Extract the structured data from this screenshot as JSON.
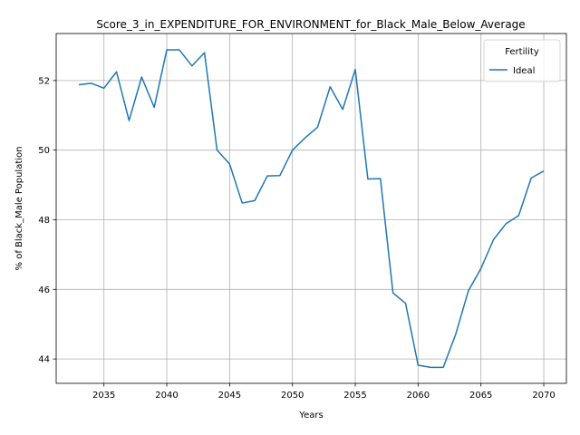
{
  "chart_data": {
    "type": "line",
    "title": "Score_3_in_EXPENDITURE_FOR_ENVIRONMENT_for_Black_Male_Below_Average",
    "xlabel": "Years",
    "ylabel": "% of Black_Male Population",
    "xlim": [
      2031.2,
      2071.8
    ],
    "ylim": [
      43.3,
      53.35
    ],
    "xticks": [
      2035,
      2040,
      2045,
      2050,
      2055,
      2060,
      2065,
      2070
    ],
    "yticks": [
      44,
      46,
      48,
      50,
      52
    ],
    "grid": true,
    "legend": {
      "title": "Fertility",
      "placement": "top-right"
    },
    "series": [
      {
        "name": "Ideal",
        "color": "#1f77b4",
        "x": [
          2033,
          2034,
          2035,
          2036,
          2037,
          2038,
          2039,
          2040,
          2041,
          2042,
          2043,
          2044,
          2045,
          2046,
          2047,
          2048,
          2049,
          2050,
          2051,
          2052,
          2053,
          2054,
          2055,
          2056,
          2057,
          2058,
          2059,
          2060,
          2061,
          2062,
          2063,
          2064,
          2065,
          2066,
          2067,
          2068,
          2069,
          2070
        ],
        "values": [
          51.88,
          51.92,
          51.78,
          52.25,
          50.85,
          52.1,
          51.23,
          52.88,
          52.88,
          52.42,
          52.8,
          50.0,
          49.6,
          48.48,
          48.55,
          49.26,
          49.27,
          50.0,
          50.35,
          50.66,
          51.82,
          51.17,
          52.32,
          49.17,
          49.18,
          45.9,
          45.6,
          43.82,
          43.76,
          43.76,
          44.72,
          45.96,
          46.6,
          47.43,
          47.89,
          48.12,
          49.2,
          49.4
        ]
      }
    ]
  }
}
